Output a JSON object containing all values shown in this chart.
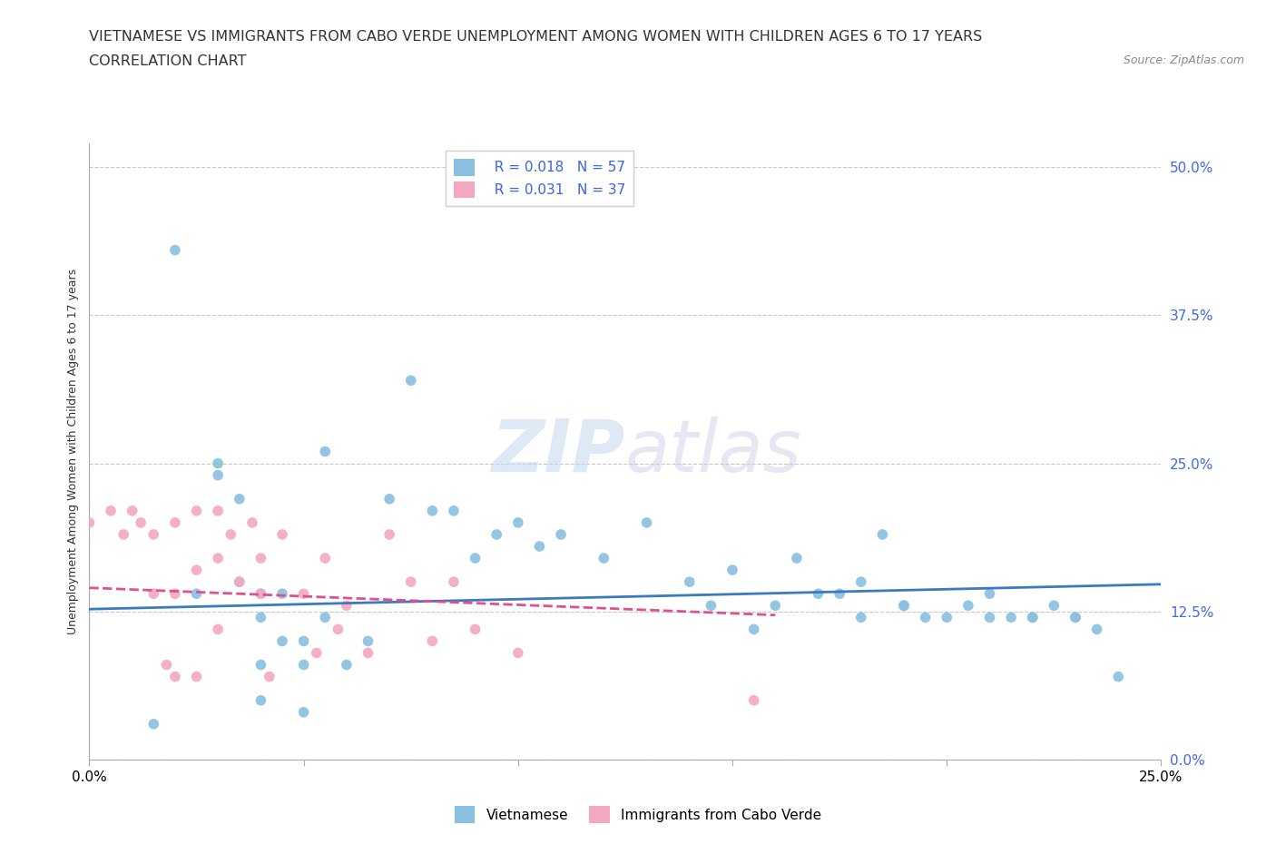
{
  "title_line1": "VIETNAMESE VS IMMIGRANTS FROM CABO VERDE UNEMPLOYMENT AMONG WOMEN WITH CHILDREN AGES 6 TO 17 YEARS",
  "title_line2": "CORRELATION CHART",
  "source_text": "Source: ZipAtlas.com",
  "ylabel": "Unemployment Among Women with Children Ages 6 to 17 years",
  "watermark_part1": "ZIP",
  "watermark_part2": "atlas",
  "xlim": [
    0.0,
    0.25
  ],
  "ylim": [
    0.0,
    0.52
  ],
  "yticks": [
    0.0,
    0.125,
    0.25,
    0.375,
    0.5
  ],
  "ytick_labels": [
    "0.0%",
    "12.5%",
    "25.0%",
    "37.5%",
    "50.0%"
  ],
  "xticks": [
    0.0,
    0.05,
    0.1,
    0.15,
    0.2,
    0.25
  ],
  "xtick_labels": [
    "0.0%",
    "",
    "",
    "",
    "",
    "25.0%"
  ],
  "grid_color": "#c8c8c8",
  "background_color": "#ffffff",
  "blue_color": "#89bfdf",
  "pink_color": "#f4a8bf",
  "blue_line_color": "#3a7abf",
  "pink_line_color": "#e05090",
  "tick_label_color": "#4169e1",
  "legend_r1": "R = 0.018",
  "legend_n1": "N = 57",
  "legend_r2": "R = 0.031",
  "legend_n2": "N = 37",
  "legend_label1": "Vietnamese",
  "legend_label2": "Immigrants from Cabo Verde",
  "blue_x": [
    0.015,
    0.02,
    0.025,
    0.03,
    0.03,
    0.035,
    0.035,
    0.04,
    0.04,
    0.04,
    0.04,
    0.045,
    0.045,
    0.05,
    0.05,
    0.05,
    0.055,
    0.055,
    0.06,
    0.065,
    0.07,
    0.075,
    0.08,
    0.085,
    0.09,
    0.095,
    0.1,
    0.105,
    0.11,
    0.12,
    0.13,
    0.14,
    0.145,
    0.15,
    0.155,
    0.16,
    0.165,
    0.17,
    0.175,
    0.18,
    0.185,
    0.19,
    0.195,
    0.2,
    0.205,
    0.21,
    0.215,
    0.22,
    0.225,
    0.23,
    0.235,
    0.24,
    0.18,
    0.19,
    0.21,
    0.22,
    0.23
  ],
  "blue_y": [
    0.03,
    0.43,
    0.14,
    0.25,
    0.24,
    0.22,
    0.15,
    0.14,
    0.08,
    0.05,
    0.12,
    0.14,
    0.1,
    0.08,
    0.04,
    0.1,
    0.26,
    0.12,
    0.08,
    0.1,
    0.22,
    0.32,
    0.21,
    0.21,
    0.17,
    0.19,
    0.2,
    0.18,
    0.19,
    0.17,
    0.2,
    0.15,
    0.13,
    0.16,
    0.11,
    0.13,
    0.17,
    0.14,
    0.14,
    0.12,
    0.19,
    0.13,
    0.12,
    0.12,
    0.13,
    0.14,
    0.12,
    0.12,
    0.13,
    0.12,
    0.11,
    0.07,
    0.15,
    0.13,
    0.12,
    0.12,
    0.12
  ],
  "pink_x": [
    0.0,
    0.005,
    0.008,
    0.01,
    0.012,
    0.015,
    0.015,
    0.018,
    0.02,
    0.02,
    0.02,
    0.025,
    0.025,
    0.025,
    0.03,
    0.03,
    0.03,
    0.033,
    0.035,
    0.038,
    0.04,
    0.04,
    0.042,
    0.045,
    0.05,
    0.053,
    0.055,
    0.058,
    0.06,
    0.065,
    0.07,
    0.075,
    0.08,
    0.085,
    0.09,
    0.1,
    0.155
  ],
  "pink_y": [
    0.2,
    0.21,
    0.19,
    0.21,
    0.2,
    0.19,
    0.14,
    0.08,
    0.2,
    0.14,
    0.07,
    0.21,
    0.16,
    0.07,
    0.21,
    0.17,
    0.11,
    0.19,
    0.15,
    0.2,
    0.17,
    0.14,
    0.07,
    0.19,
    0.14,
    0.09,
    0.17,
    0.11,
    0.13,
    0.09,
    0.19,
    0.15,
    0.1,
    0.15,
    0.11,
    0.09,
    0.05
  ],
  "blue_trend_x": [
    0.0,
    0.25
  ],
  "blue_trend_y": [
    0.127,
    0.148
  ],
  "pink_trend_x": [
    0.0,
    0.16
  ],
  "pink_trend_y": [
    0.145,
    0.122
  ],
  "title_fontsize": 11.5,
  "subtitle_fontsize": 11.5,
  "axis_label_fontsize": 9,
  "tick_fontsize": 11,
  "legend_fontsize": 11,
  "source_fontsize": 9
}
